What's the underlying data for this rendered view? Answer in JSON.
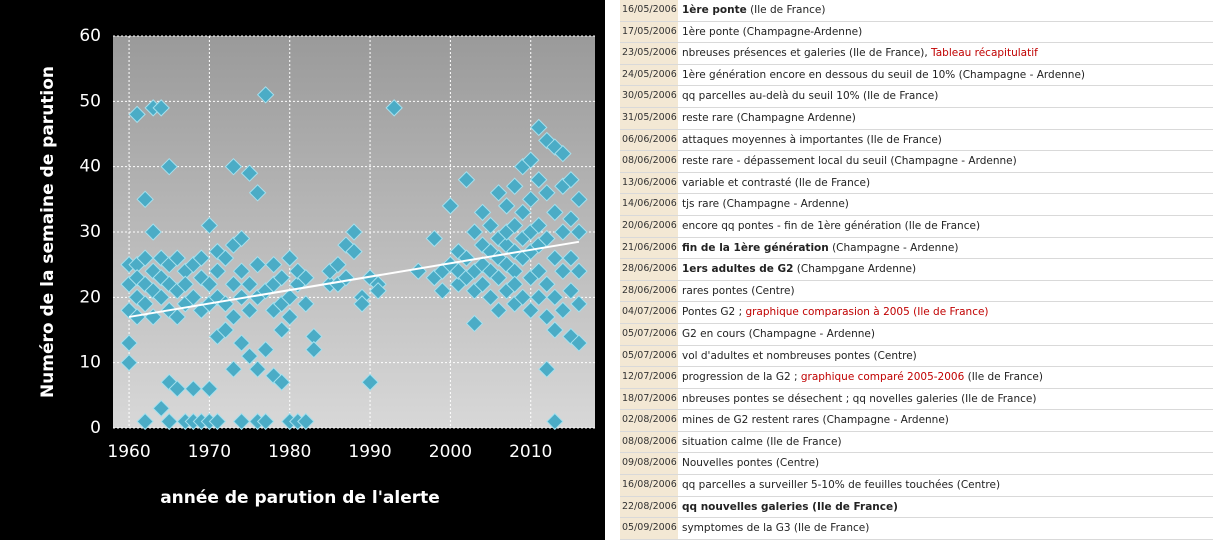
{
  "chart_data": {
    "type": "scatter",
    "xlabel": "année de parution de l'alerte",
    "ylabel": "Numéro de la semaine de parution",
    "xlim": [
      1958,
      2018
    ],
    "xticks": [
      1960,
      1970,
      1980,
      1990,
      2000,
      2010
    ],
    "ylim": [
      0,
      60
    ],
    "yticks": [
      0,
      10,
      20,
      30,
      40,
      50,
      60
    ],
    "grid": true,
    "series": [
      {
        "color": "#4bacc6",
        "x": [
          1960,
          1960,
          1960,
          1960,
          1960,
          1961,
          1961,
          1961,
          1961,
          1961,
          1962,
          1962,
          1962,
          1962,
          1962,
          1963,
          1963,
          1963,
          1963,
          1963,
          1964,
          1964,
          1964,
          1964,
          1964,
          1965,
          1965,
          1965,
          1965,
          1965,
          1965,
          1966,
          1966,
          1966,
          1966,
          1967,
          1967,
          1967,
          1967,
          1968,
          1968,
          1968,
          1968,
          1969,
          1969,
          1969,
          1969,
          1970,
          1970,
          1970,
          1970,
          1970,
          1971,
          1971,
          1971,
          1971,
          1971,
          1972,
          1972,
          1972,
          1973,
          1973,
          1973,
          1973,
          1973,
          1974,
          1974,
          1974,
          1974,
          1974,
          1975,
          1975,
          1975,
          1975,
          1976,
          1976,
          1976,
          1976,
          1976,
          1977,
          1977,
          1977,
          1977,
          1978,
          1978,
          1978,
          1978,
          1979,
          1979,
          1979,
          1979,
          1980,
          1980,
          1980,
          1980,
          1981,
          1981,
          1981,
          1982,
          1982,
          1982,
          1983,
          1983,
          1985,
          1985,
          1986,
          1986,
          1987,
          1987,
          1988,
          1988,
          1989,
          1989,
          1990,
          1990,
          1991,
          1991,
          1993,
          1996,
          1998,
          1998,
          1999,
          1999,
          2000,
          2000,
          2001,
          2001,
          2001,
          2002,
          2002,
          2002,
          2003,
          2003,
          2003,
          2003,
          2004,
          2004,
          2004,
          2004,
          2005,
          2005,
          2005,
          2005,
          2006,
          2006,
          2006,
          2006,
          2006,
          2007,
          2007,
          2007,
          2007,
          2007,
          2008,
          2008,
          2008,
          2008,
          2008,
          2008,
          2009,
          2009,
          2009,
          2009,
          2009,
          2010,
          2010,
          2010,
          2010,
          2010,
          2010,
          2011,
          2011,
          2011,
          2011,
          2011,
          2011,
          2012,
          2012,
          2012,
          2012,
          2012,
          2012,
          2013,
          2013,
          2013,
          2013,
          2013,
          2013,
          2014,
          2014,
          2014,
          2014,
          2014,
          2015,
          2015,
          2015,
          2015,
          2015,
          2016,
          2016,
          2016,
          2016,
          2016
        ],
        "values": [
          13,
          10,
          22,
          25,
          18,
          17,
          20,
          25,
          48,
          23,
          35,
          22,
          1,
          19,
          26,
          30,
          49,
          24,
          17,
          21,
          49,
          3,
          20,
          26,
          23,
          40,
          7,
          22,
          18,
          25,
          1,
          6,
          21,
          26,
          17,
          1,
          24,
          19,
          22,
          6,
          25,
          20,
          1,
          23,
          18,
          1,
          26,
          31,
          6,
          22,
          19,
          1,
          14,
          27,
          20,
          24,
          1,
          26,
          19,
          15,
          40,
          9,
          22,
          17,
          28,
          29,
          1,
          24,
          13,
          20,
          39,
          11,
          22,
          18,
          36,
          9,
          25,
          1,
          20,
          51,
          12,
          21,
          1,
          22,
          8,
          25,
          18,
          7,
          15,
          23,
          19,
          1,
          26,
          20,
          17,
          22,
          24,
          1,
          1,
          19,
          23,
          14,
          12,
          22,
          24,
          25,
          22,
          28,
          23,
          30,
          27,
          20,
          19,
          7,
          23,
          22,
          21,
          49,
          24,
          29,
          23,
          21,
          24,
          34,
          25,
          22,
          24,
          27,
          38,
          26,
          23,
          16,
          30,
          24,
          21,
          33,
          25,
          28,
          22,
          27,
          24,
          31,
          20,
          36,
          29,
          23,
          18,
          26,
          34,
          28,
          21,
          25,
          30,
          37,
          31,
          19,
          24,
          27,
          22,
          40,
          33,
          26,
          20,
          29,
          41,
          35,
          27,
          18,
          30,
          23,
          46,
          38,
          31,
          24,
          20,
          28,
          44,
          9,
          36,
          29,
          22,
          17,
          43,
          1,
          33,
          26,
          20,
          15,
          42,
          37,
          30,
          24,
          18,
          38,
          14,
          32,
          26,
          21,
          35,
          13,
          30,
          24,
          19
        ]
      }
    ],
    "trendline": {
      "color": "#ffffff",
      "x": [
        1960,
        2016
      ],
      "y": [
        17,
        28.5
      ]
    }
  },
  "table": {
    "rows": [
      {
        "date": "16/05/2006",
        "parts": [
          {
            "text": "1ère ponte",
            "bold": true
          },
          {
            "text": " (Ile de France)"
          }
        ]
      },
      {
        "date": "17/05/2006",
        "parts": [
          {
            "text": "1ère ponte (Champagne-Ardenne)"
          }
        ]
      },
      {
        "date": "23/05/2006",
        "parts": [
          {
            "text": "nbreuses présences et galeries (Ile de France), "
          },
          {
            "text": "Tableau récapitulatif",
            "color": "#c00000"
          }
        ]
      },
      {
        "date": "24/05/2006",
        "parts": [
          {
            "text": "1ère génération encore en dessous du seuil de 10% (Champagne - Ardenne)"
          }
        ]
      },
      {
        "date": "30/05/2006",
        "parts": [
          {
            "text": "qq parcelles au-delà du seuil 10% (Ile de France)"
          }
        ]
      },
      {
        "date": "31/05/2006",
        "parts": [
          {
            "text": "reste rare (Champagne Ardenne)"
          }
        ]
      },
      {
        "date": "06/06/2006",
        "parts": [
          {
            "text": "attaques moyennes à importantes (Ile de France)"
          }
        ]
      },
      {
        "date": "08/06/2006",
        "parts": [
          {
            "text": "reste rare - dépassement local du seuil (Champagne - Ardenne)"
          }
        ]
      },
      {
        "date": "13/06/2006",
        "parts": [
          {
            "text": "variable et contrasté (Ile de France)"
          }
        ]
      },
      {
        "date": "14/06/2006",
        "parts": [
          {
            "text": "tjs rare (Champagne - Ardenne)"
          }
        ]
      },
      {
        "date": "20/06/2006",
        "parts": [
          {
            "text": "encore qq pontes - fin de 1ère génération (Ile de France)"
          }
        ]
      },
      {
        "date": "21/06/2006",
        "parts": [
          {
            "text": "fin de la 1ère génération",
            "bold": true
          },
          {
            "text": " (Champagne - Ardenne)"
          }
        ]
      },
      {
        "date": "28/06/2006",
        "parts": [
          {
            "text": "1ers adultes de G2",
            "bold": true
          },
          {
            "text": " (Champgane Ardenne)"
          }
        ]
      },
      {
        "date": "28/06/2006",
        "parts": [
          {
            "text": "rares pontes (Centre)"
          }
        ]
      },
      {
        "date": "04/07/2006",
        "parts": [
          {
            "text": "Pontes G2 ; "
          },
          {
            "text": "graphique comparasion à 2005 (Ile de France)",
            "color": "#c00000"
          }
        ]
      },
      {
        "date": "05/07/2006",
        "parts": [
          {
            "text": "G2 en cours (Champagne - Ardenne)"
          }
        ]
      },
      {
        "date": "05/07/2006",
        "parts": [
          {
            "text": "vol d'adultes et nombreuses pontes (Centre)"
          }
        ]
      },
      {
        "date": "12/07/2006",
        "parts": [
          {
            "text": "progression de la G2 ; "
          },
          {
            "text": "graphique comparé 2005-2006",
            "color": "#c00000"
          },
          {
            "text": " (Ile de France)"
          }
        ]
      },
      {
        "date": "18/07/2006",
        "parts": [
          {
            "text": "nbreuses pontes se désechent ; qq novelles galeries (Ile de France)"
          }
        ]
      },
      {
        "date": "02/08/2006",
        "parts": [
          {
            "text": "mines de G2 restent rares (Champagne - Ardenne)"
          }
        ]
      },
      {
        "date": "08/08/2006",
        "parts": [
          {
            "text": "situation calme (Ile de France)"
          }
        ]
      },
      {
        "date": "09/08/2006",
        "parts": [
          {
            "text": "Nouvelles pontes (Centre)"
          }
        ]
      },
      {
        "date": "16/08/2006",
        "parts": [
          {
            "text": "qq parcelles a surveiller 5-10% de feuilles touchées (Centre)"
          }
        ]
      },
      {
        "date": "22/08/2006",
        "parts": [
          {
            "text": "qq nouvelles galeries (Ile de France)",
            "bold": true
          }
        ]
      },
      {
        "date": "05/09/2006",
        "parts": [
          {
            "text": "symptomes de la G3 (Ile de France)"
          }
        ]
      }
    ]
  }
}
